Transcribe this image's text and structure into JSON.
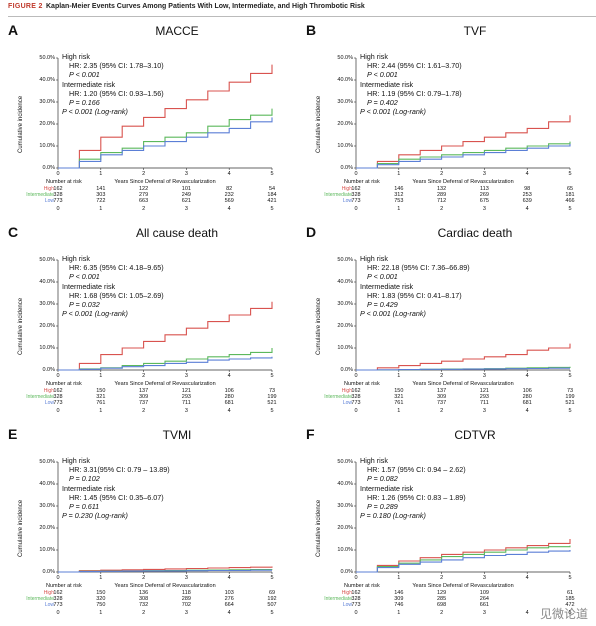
{
  "header": {
    "label": "FIGURE 2",
    "title": "Kaplan-Meier Events Curves Among Patients With Low, Intermediate, and High Thrombotic Risk"
  },
  "common": {
    "ylabel": "Cumulative incidence",
    "xlabel": "Years Since Deferral of Revascularization",
    "number_at_risk": "Number at risk",
    "group_labels": [
      "High",
      "Intermediate",
      "Low"
    ],
    "yticks": [
      "0.0%",
      "10.0%",
      "20.0%",
      "30.0%",
      "40.0%",
      "50.0%"
    ],
    "xticks": [
      "0",
      "1",
      "2",
      "3",
      "4",
      "5"
    ]
  },
  "colors": {
    "high": "#d9534f",
    "intermediate": "#5cb85c",
    "low": "#5b7fd6"
  },
  "watermark": "见微论道",
  "panels": [
    {
      "letter": "A",
      "title": "MACCE",
      "lines": [
        "High risk",
        "HR: 2.35 (95% CI: 1.78–3.10)",
        "P < 0.001",
        "Intermediate risk",
        "HR: 1.20 (95% CI: 0.93–1.56)",
        "P = 0.166",
        "P < 0.001 (Log-rank)"
      ],
      "risk_table": {
        "high": [
          "162",
          "141",
          "122",
          "101",
          "82",
          "54"
        ],
        "intermediate": [
          "328",
          "303",
          "279",
          "249",
          "232",
          "184"
        ],
        "low": [
          "773",
          "722",
          "663",
          "621",
          "569",
          "421"
        ]
      }
    },
    {
      "letter": "B",
      "title": "TVF",
      "lines": [
        "High risk",
        "HR: 2.44 (95% CI: 1.61–3.70)",
        "P < 0.001",
        "Intermediate risk",
        "HR: 1.19 (95% CI: 0.79–1.78)",
        "P = 0.402",
        "P < 0.001 (Log-rank)"
      ],
      "risk_table": {
        "high": [
          "162",
          "146",
          "132",
          "113",
          "98",
          "65"
        ],
        "intermediate": [
          "328",
          "312",
          "289",
          "269",
          "253",
          "181"
        ],
        "low": [
          "773",
          "753",
          "712",
          "675",
          "639",
          "466"
        ]
      }
    },
    {
      "letter": "C",
      "title": "All cause death",
      "lines": [
        "High risk",
        "HR: 6.35 (95% CI: 4.18–9.65)",
        "P < 0.001",
        "Intermediate risk",
        "HR: 1.68 (95% CI: 1.05–2.69)",
        "P = 0.032",
        "P < 0.001 (Log-rank)"
      ],
      "risk_table": {
        "high": [
          "162",
          "150",
          "137",
          "121",
          "106",
          "73"
        ],
        "intermediate": [
          "328",
          "321",
          "309",
          "293",
          "280",
          "199"
        ],
        "low": [
          "773",
          "761",
          "737",
          "711",
          "681",
          "521"
        ]
      }
    },
    {
      "letter": "D",
      "title": "Cardiac death",
      "lines": [
        "High risk",
        "HR: 22.18 (95% CI: 7.36–66.89)",
        "P < 0.001",
        "Intermediate risk",
        "HR: 1.83 (95% CI: 0.41–8.17)",
        "P = 0.429",
        "P < 0.001 (Log-rank)"
      ],
      "risk_table": {
        "high": [
          "162",
          "150",
          "137",
          "121",
          "106",
          "73"
        ],
        "intermediate": [
          "328",
          "321",
          "309",
          "293",
          "280",
          "199"
        ],
        "low": [
          "773",
          "761",
          "737",
          "711",
          "681",
          "521"
        ]
      }
    },
    {
      "letter": "E",
      "title": "TVMI",
      "lines": [
        "High risk",
        "HR: 3.31(95% CI: 0.79 – 13.89)",
        "P = 0.102",
        "Intermediate risk",
        "HR: 1.45 (95% CI: 0.35–6.07)",
        "P = 0.611",
        "P = 0.230 (Log-rank)"
      ],
      "risk_table": {
        "high": [
          "162",
          "150",
          "136",
          "118",
          "103",
          "69"
        ],
        "intermediate": [
          "328",
          "320",
          "308",
          "289",
          "276",
          "192"
        ],
        "low": [
          "773",
          "750",
          "732",
          "702",
          "664",
          "507"
        ]
      }
    },
    {
      "letter": "F",
      "title": "CDTVR",
      "lines": [
        "High risk",
        "HR: 1.57 (95% CI: 0.94 – 2.62)",
        "P = 0.082",
        "Intermediate risk",
        "HR: 1.26 (95% CI: 0.83 – 1.89)",
        "P = 0.289",
        "P = 0.180 (Log-rank)"
      ],
      "risk_table": {
        "high": [
          "162",
          "146",
          "129",
          "109",
          "",
          "61"
        ],
        "intermediate": [
          "328",
          "309",
          "285",
          "264",
          "",
          "185"
        ],
        "low": [
          "773",
          "746",
          "698",
          "661",
          "",
          "472"
        ]
      }
    }
  ],
  "chart_data": [
    {
      "type": "line",
      "title": "MACCE",
      "xlabel": "Years Since Deferral of Revascularization",
      "ylabel": "Cumulative incidence",
      "xlim": [
        0,
        5
      ],
      "ylim": [
        0,
        50
      ],
      "x": [
        0,
        0.5,
        1,
        1.5,
        2,
        2.5,
        3,
        3.5,
        4,
        4.5,
        5
      ],
      "series": [
        {
          "name": "High",
          "values": [
            0,
            8,
            14,
            19,
            23,
            27,
            31,
            35,
            39,
            43,
            47
          ]
        },
        {
          "name": "Intermediate",
          "values": [
            0,
            4,
            7,
            9,
            12,
            14,
            16,
            19,
            22,
            24,
            27
          ]
        },
        {
          "name": "Low",
          "values": [
            0,
            3,
            6,
            8,
            10,
            12,
            14,
            16,
            18,
            21,
            23
          ]
        }
      ]
    },
    {
      "type": "line",
      "title": "TVF",
      "xlabel": "Years Since Deferral of Revascularization",
      "ylabel": "Cumulative incidence",
      "xlim": [
        0,
        5
      ],
      "ylim": [
        0,
        50
      ],
      "x": [
        0,
        0.5,
        1,
        1.5,
        2,
        2.5,
        3,
        3.5,
        4,
        4.5,
        5
      ],
      "series": [
        {
          "name": "High",
          "values": [
            0,
            3,
            6,
            8,
            10,
            12,
            14,
            16,
            18,
            21,
            24
          ]
        },
        {
          "name": "Intermediate",
          "values": [
            0,
            2,
            4,
            5,
            6,
            7,
            8,
            9,
            10,
            11,
            12
          ]
        },
        {
          "name": "Low",
          "values": [
            0,
            1.5,
            3,
            4,
            5,
            6,
            7,
            8,
            9,
            10,
            11
          ]
        }
      ]
    },
    {
      "type": "line",
      "title": "All cause death",
      "xlabel": "Years Since Deferral of Revascularization",
      "ylabel": "Cumulative incidence",
      "xlim": [
        0,
        5
      ],
      "ylim": [
        0,
        50
      ],
      "x": [
        0,
        0.5,
        1,
        1.5,
        2,
        2.5,
        3,
        3.5,
        4,
        4.5,
        5
      ],
      "series": [
        {
          "name": "High",
          "values": [
            0,
            3,
            7,
            10,
            13,
            16,
            19,
            22,
            25,
            28,
            31
          ]
        },
        {
          "name": "Intermediate",
          "values": [
            0,
            0.5,
            1,
            2,
            3,
            4,
            5,
            6,
            7,
            8,
            10
          ]
        },
        {
          "name": "Low",
          "values": [
            0,
            0.3,
            0.8,
            1.5,
            2,
            3,
            3.5,
            4.5,
            5,
            5.5,
            6
          ]
        }
      ]
    },
    {
      "type": "line",
      "title": "Cardiac death",
      "xlabel": "Years Since Deferral of Revascularization",
      "ylabel": "Cumulative incidence",
      "xlim": [
        0,
        5
      ],
      "ylim": [
        0,
        50
      ],
      "x": [
        0,
        0.5,
        1,
        1.5,
        2,
        2.5,
        3,
        3.5,
        4,
        4.5,
        5
      ],
      "series": [
        {
          "name": "High",
          "values": [
            0,
            1,
            2,
            3,
            4,
            5,
            6,
            7,
            9,
            10,
            12
          ]
        },
        {
          "name": "Intermediate",
          "values": [
            0,
            0,
            0.2,
            0.3,
            0.4,
            0.5,
            0.6,
            0.8,
            1,
            1.2,
            1.5
          ]
        },
        {
          "name": "Low",
          "values": [
            0,
            0.1,
            0.2,
            0.3,
            0.3,
            0.4,
            0.5,
            0.6,
            0.7,
            0.8,
            0.8
          ]
        }
      ]
    },
    {
      "type": "line",
      "title": "TVMI",
      "xlabel": "Years Since Deferral of Revascularization",
      "ylabel": "Cumulative incidence",
      "xlim": [
        0,
        5
      ],
      "ylim": [
        0,
        50
      ],
      "x": [
        0,
        0.5,
        1,
        1.5,
        2,
        2.5,
        3,
        3.5,
        4,
        4.5,
        5
      ],
      "series": [
        {
          "name": "High",
          "values": [
            0,
            0.6,
            0.8,
            1,
            1.2,
            1.4,
            1.6,
            1.8,
            2,
            2.2,
            2.5
          ]
        },
        {
          "name": "Intermediate",
          "values": [
            0,
            0.3,
            0.4,
            0.5,
            0.6,
            0.7,
            0.8,
            0.9,
            1,
            1.1,
            1.2
          ]
        },
        {
          "name": "Low",
          "values": [
            0,
            0.2,
            0.3,
            0.4,
            0.5,
            0.5,
            0.6,
            0.7,
            0.7,
            0.8,
            0.8
          ]
        }
      ]
    },
    {
      "type": "line",
      "title": "CDTVR",
      "xlabel": "Years Since Deferral of Revascularization",
      "ylabel": "Cumulative incidence",
      "xlim": [
        0,
        5
      ],
      "ylim": [
        0,
        50
      ],
      "x": [
        0,
        0.5,
        1,
        1.5,
        2,
        2.5,
        3,
        3.5,
        4,
        4.5,
        5
      ],
      "series": [
        {
          "name": "High",
          "values": [
            0,
            3,
            5,
            6.5,
            8,
            9,
            10,
            11,
            12,
            13,
            15
          ]
        },
        {
          "name": "Intermediate",
          "values": [
            0,
            2.5,
            4,
            5.5,
            7,
            8,
            9,
            10,
            11,
            11.5,
            12
          ]
        },
        {
          "name": "Low",
          "values": [
            0,
            2,
            3.5,
            4.5,
            5.5,
            6.5,
            7.5,
            8,
            9,
            9.5,
            10
          ]
        }
      ]
    }
  ]
}
